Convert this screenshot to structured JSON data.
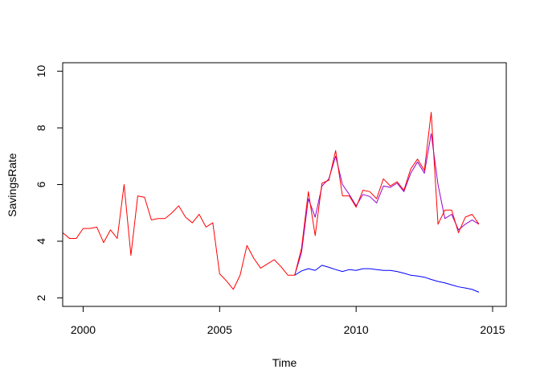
{
  "chart_data": {
    "type": "line",
    "title": "",
    "xlabel": "Time",
    "ylabel": "SavingsRate",
    "xlim": [
      1999.25,
      2015.5
    ],
    "ylim": [
      1.7,
      10.3
    ],
    "x_ticks": [
      2000,
      2005,
      2010,
      2015
    ],
    "x_tick_labels": [
      "2000",
      "2005",
      "2010",
      "2015"
    ],
    "y_ticks": [
      2,
      4,
      6,
      8,
      10
    ],
    "y_tick_labels": [
      "2",
      "4",
      "6",
      "8",
      "10"
    ],
    "grid": false,
    "series": [
      {
        "color": "#0000ff",
        "x": [
          2007.75,
          2008.0,
          2008.25,
          2008.5,
          2008.75,
          2009.0,
          2009.25,
          2009.5,
          2009.75,
          2010.0,
          2010.25,
          2010.5,
          2010.75,
          2011.0,
          2011.25,
          2011.5,
          2011.75,
          2012.0,
          2012.25,
          2012.5,
          2012.75,
          2013.0,
          2013.25,
          2013.5,
          2013.75,
          2014.0,
          2014.25,
          2014.5
        ],
        "y": [
          2.8,
          2.95,
          3.03,
          2.97,
          3.15,
          3.08,
          3.0,
          2.93,
          3.0,
          2.97,
          3.03,
          3.03,
          3.0,
          2.97,
          2.97,
          2.93,
          2.87,
          2.8,
          2.77,
          2.73,
          2.65,
          2.58,
          2.53,
          2.46,
          2.39,
          2.35,
          2.3,
          2.2
        ]
      },
      {
        "color": "#9900cc",
        "x": [
          2007.75,
          2008.0,
          2008.25,
          2008.5,
          2008.75,
          2009.0,
          2009.25,
          2009.5,
          2009.75,
          2010.0,
          2010.25,
          2010.5,
          2010.75,
          2011.0,
          2011.25,
          2011.5,
          2011.75,
          2012.0,
          2012.25,
          2012.5,
          2012.75,
          2013.0,
          2013.25,
          2013.5,
          2013.75,
          2014.0,
          2014.25,
          2014.5
        ],
        "y": [
          2.8,
          3.6,
          5.5,
          4.85,
          5.95,
          6.2,
          7.0,
          6.0,
          5.65,
          5.25,
          5.65,
          5.58,
          5.35,
          5.95,
          5.9,
          6.05,
          5.75,
          6.4,
          6.8,
          6.4,
          7.8,
          6.0,
          4.8,
          4.95,
          4.4,
          4.6,
          4.75,
          4.6
        ]
      },
      {
        "color": "#ff0000",
        "x": [
          1999.25,
          1999.5,
          1999.75,
          2000.0,
          2000.25,
          2000.5,
          2000.75,
          2001.0,
          2001.25,
          2001.5,
          2001.75,
          2002.0,
          2002.25,
          2002.5,
          2002.75,
          2003.0,
          2003.25,
          2003.5,
          2003.75,
          2004.0,
          2004.25,
          2004.5,
          2004.75,
          2005.0,
          2005.25,
          2005.5,
          2005.75,
          2006.0,
          2006.25,
          2006.5,
          2006.75,
          2007.0,
          2007.25,
          2007.5,
          2007.75,
          2008.0,
          2008.25,
          2008.5,
          2008.75,
          2009.0,
          2009.25,
          2009.5,
          2009.75,
          2010.0,
          2010.25,
          2010.5,
          2010.75,
          2011.0,
          2011.25,
          2011.5,
          2011.75,
          2012.0,
          2012.25,
          2012.5,
          2012.75,
          2013.0,
          2013.25,
          2013.5,
          2013.75,
          2014.0,
          2014.25,
          2014.5
        ],
        "y": [
          4.3,
          4.1,
          4.1,
          4.45,
          4.45,
          4.5,
          3.95,
          4.4,
          4.1,
          6.0,
          3.5,
          5.6,
          5.55,
          4.75,
          4.8,
          4.8,
          5.0,
          5.25,
          4.85,
          4.65,
          4.95,
          4.5,
          4.65,
          2.85,
          2.6,
          2.3,
          2.8,
          3.85,
          3.4,
          3.05,
          3.2,
          3.35,
          3.1,
          2.8,
          2.8,
          3.75,
          5.75,
          4.2,
          6.05,
          6.15,
          7.2,
          5.6,
          5.6,
          5.2,
          5.8,
          5.75,
          5.5,
          6.2,
          5.95,
          6.1,
          5.8,
          6.55,
          6.9,
          6.5,
          8.55,
          4.6,
          5.1,
          5.1,
          4.3,
          4.85,
          4.95,
          4.6
        ]
      }
    ]
  }
}
